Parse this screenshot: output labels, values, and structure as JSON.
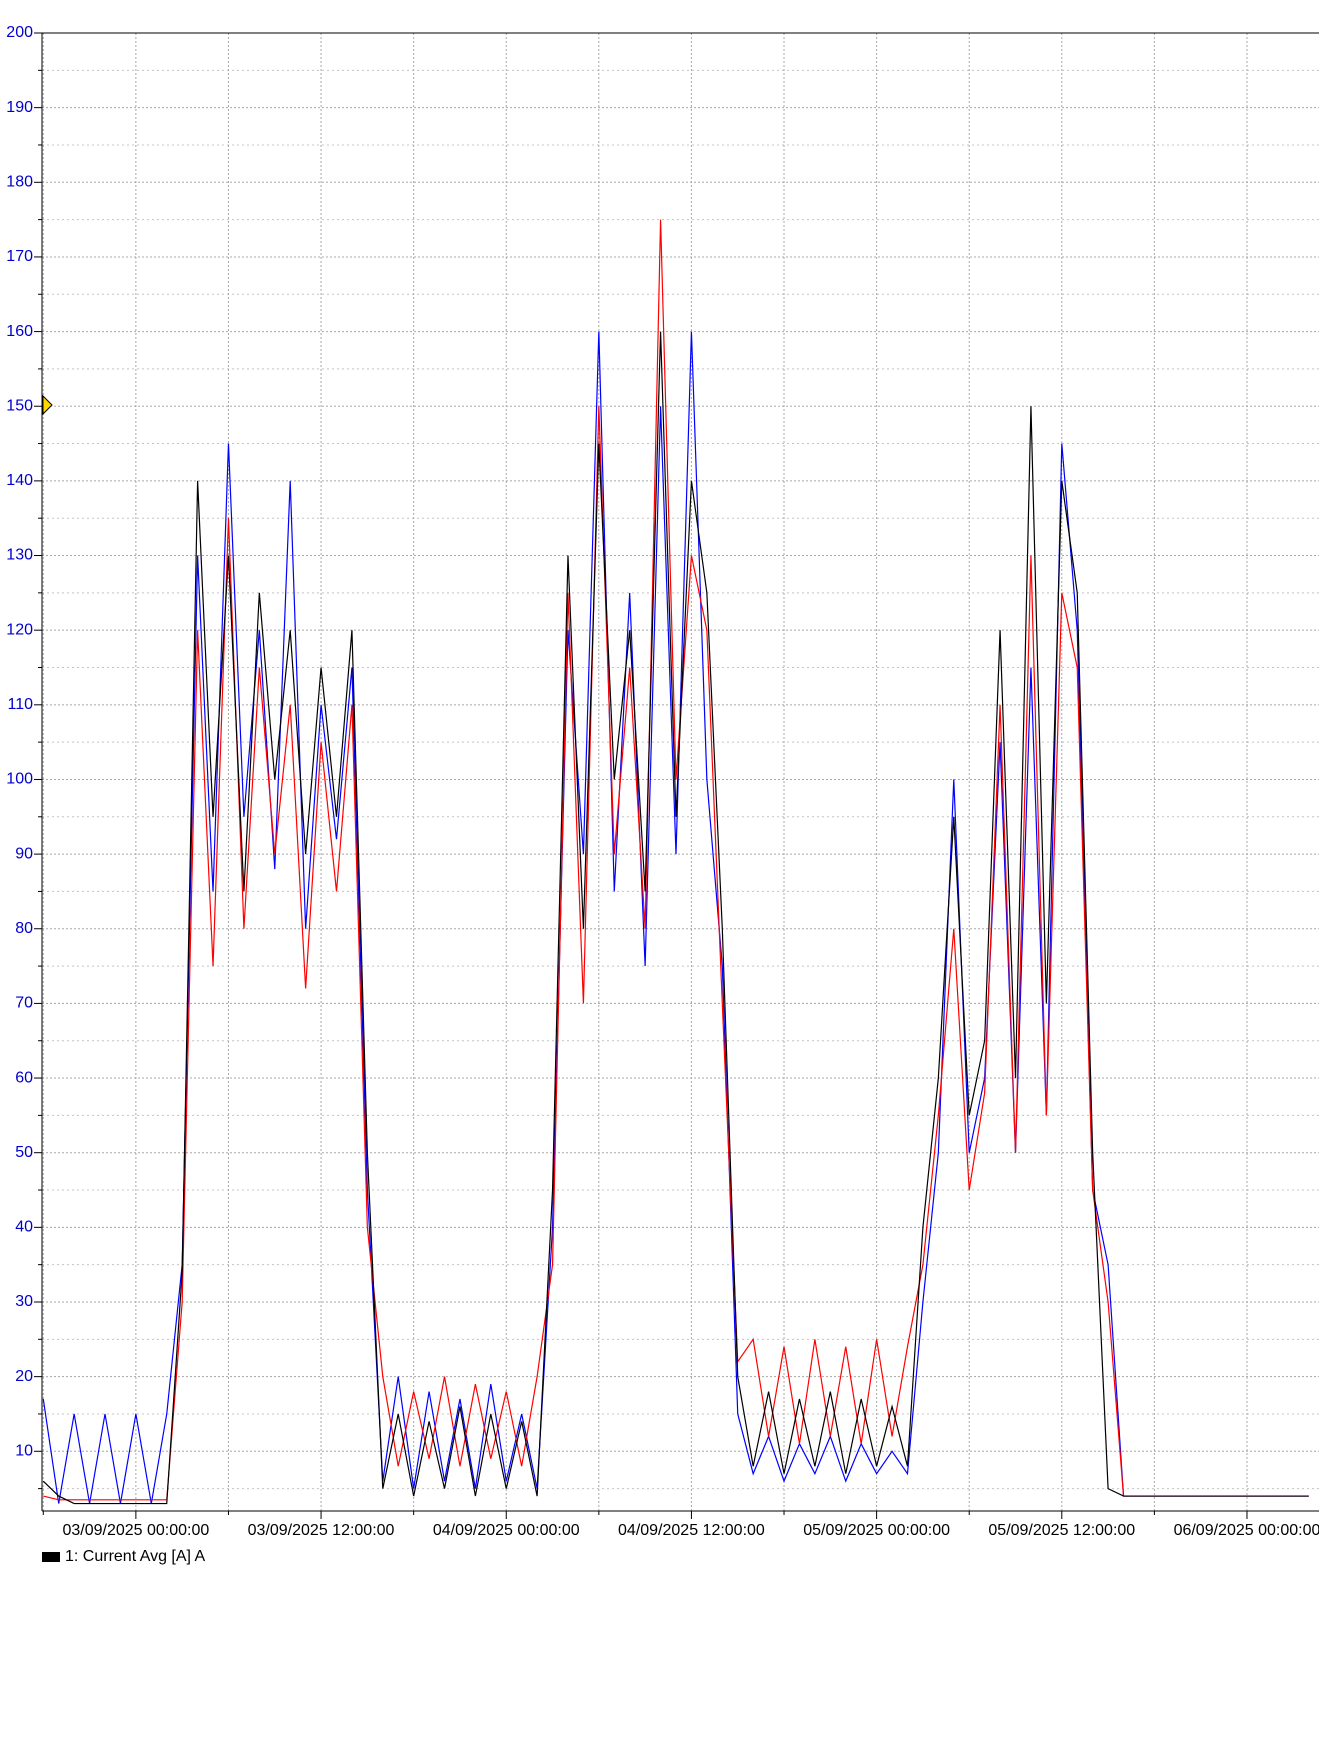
{
  "chart_data": {
    "type": "line",
    "x": [
      "02/09/2025 18:00:00",
      "02/09/2025 19:00:00",
      "02/09/2025 20:00:00",
      "02/09/2025 21:00:00",
      "02/09/2025 22:00:00",
      "02/09/2025 23:00:00",
      "03/09/2025 00:00:00",
      "03/09/2025 01:00:00",
      "03/09/2025 02:00:00",
      "03/09/2025 03:00:00",
      "03/09/2025 04:00:00",
      "03/09/2025 05:00:00",
      "03/09/2025 06:00:00",
      "03/09/2025 07:00:00",
      "03/09/2025 08:00:00",
      "03/09/2025 09:00:00",
      "03/09/2025 10:00:00",
      "03/09/2025 11:00:00",
      "03/09/2025 12:00:00",
      "03/09/2025 13:00:00",
      "03/09/2025 14:00:00",
      "03/09/2025 15:00:00",
      "03/09/2025 16:00:00",
      "03/09/2025 17:00:00",
      "03/09/2025 18:00:00",
      "03/09/2025 19:00:00",
      "03/09/2025 20:00:00",
      "03/09/2025 21:00:00",
      "03/09/2025 22:00:00",
      "03/09/2025 23:00:00",
      "04/09/2025 00:00:00",
      "04/09/2025 01:00:00",
      "04/09/2025 02:00:00",
      "04/09/2025 03:00:00",
      "04/09/2025 04:00:00",
      "04/09/2025 05:00:00",
      "04/09/2025 06:00:00",
      "04/09/2025 07:00:00",
      "04/09/2025 08:00:00",
      "04/09/2025 09:00:00",
      "04/09/2025 10:00:00",
      "04/09/2025 11:00:00",
      "04/09/2025 12:00:00",
      "04/09/2025 13:00:00",
      "04/09/2025 14:00:00",
      "04/09/2025 15:00:00",
      "04/09/2025 16:00:00",
      "04/09/2025 17:00:00",
      "04/09/2025 18:00:00",
      "04/09/2025 19:00:00",
      "04/09/2025 20:00:00",
      "04/09/2025 21:00:00",
      "04/09/2025 22:00:00",
      "04/09/2025 23:00:00",
      "05/09/2025 00:00:00",
      "05/09/2025 01:00:00",
      "05/09/2025 02:00:00",
      "05/09/2025 03:00:00",
      "05/09/2025 04:00:00",
      "05/09/2025 05:00:00",
      "05/09/2025 06:00:00",
      "05/09/2025 07:00:00",
      "05/09/2025 08:00:00",
      "05/09/2025 09:00:00",
      "05/09/2025 10:00:00",
      "05/09/2025 11:00:00",
      "05/09/2025 12:00:00",
      "05/09/2025 13:00:00",
      "05/09/2025 14:00:00",
      "05/09/2025 15:00:00",
      "05/09/2025 16:00:00",
      "05/09/2025 17:00:00",
      "05/09/2025 18:00:00",
      "05/09/2025 19:00:00",
      "05/09/2025 20:00:00",
      "05/09/2025 21:00:00",
      "05/09/2025 22:00:00",
      "05/09/2025 23:00:00",
      "06/09/2025 00:00:00",
      "06/09/2025 01:00:00",
      "06/09/2025 02:00:00",
      "06/09/2025 03:00:00",
      "06/09/2025 04:00:00"
    ],
    "series": [
      {
        "color": "#0000ff",
        "values": [
          17,
          3,
          15,
          3,
          15,
          3,
          15,
          3,
          15,
          35,
          130,
          85,
          145,
          95,
          120,
          88,
          140,
          80,
          110,
          92,
          115,
          45,
          6,
          20,
          5,
          18,
          6,
          17,
          5,
          19,
          6,
          15,
          5,
          40,
          120,
          90,
          160,
          85,
          125,
          75,
          150,
          90,
          160,
          100,
          75,
          15,
          7,
          12,
          6,
          11,
          7,
          12,
          6,
          11,
          7,
          10,
          7,
          30,
          50,
          100,
          50,
          60,
          105,
          50,
          115,
          55,
          145,
          120,
          45,
          35,
          4,
          4,
          4,
          4,
          4,
          4,
          4,
          4,
          4,
          4,
          4,
          4,
          4
        ]
      },
      {
        "color": "#ff0000",
        "values": [
          4,
          3.5,
          3.5,
          3.5,
          3.5,
          3.5,
          3.5,
          3.5,
          3.5,
          30,
          120,
          75,
          135,
          80,
          115,
          90,
          110,
          72,
          105,
          85,
          110,
          40,
          20,
          8,
          18,
          9,
          20,
          8,
          19,
          9,
          18,
          8,
          20,
          35,
          125,
          70,
          150,
          90,
          115,
          80,
          175,
          100,
          130,
          120,
          70,
          22,
          25,
          12,
          24,
          11,
          25,
          12,
          24,
          11,
          25,
          12,
          24,
          35,
          55,
          80,
          45,
          58,
          110,
          50,
          130,
          55,
          125,
          115,
          45,
          30,
          4,
          4,
          4,
          4,
          4,
          4,
          4,
          4,
          4,
          4,
          4,
          4,
          4
        ]
      },
      {
        "name": "1: Current Avg [A] A",
        "color": "#000000",
        "values": [
          6,
          4,
          3,
          3,
          3,
          3,
          3,
          3,
          3,
          34,
          140,
          95,
          130,
          85,
          125,
          100,
          120,
          90,
          115,
          95,
          120,
          50,
          5,
          15,
          4,
          14,
          5,
          16,
          4,
          15,
          5,
          14,
          4,
          45,
          130,
          80,
          145,
          100,
          120,
          85,
          160,
          95,
          140,
          125,
          80,
          20,
          8,
          18,
          7,
          17,
          8,
          18,
          7,
          17,
          8,
          16,
          8,
          40,
          60,
          95,
          55,
          65,
          120,
          60,
          150,
          70,
          140,
          125,
          50,
          5,
          4,
          4,
          4,
          4,
          4,
          4,
          4,
          4,
          4,
          4,
          4,
          4,
          4
        ]
      }
    ],
    "xlim": [
      "02/09/2025 17:55:00",
      "06/09/2025 04:40:00"
    ],
    "xticks": [
      "03/09/2025 00:00:00",
      "03/09/2025 12:00:00",
      "04/09/2025 00:00:00",
      "04/09/2025 12:00:00",
      "05/09/2025 00:00:00",
      "05/09/2025 12:00:00",
      "06/09/2025 00:00:00"
    ],
    "xminorticks": [
      "02/09/2025 18:00:00",
      "03/09/2025 06:00:00",
      "03/09/2025 18:00:00",
      "04/09/2025 06:00:00",
      "04/09/2025 18:00:00",
      "05/09/2025 06:00:00",
      "05/09/2025 18:00:00"
    ],
    "ylim": [
      2,
      200
    ],
    "yticks": [
      10,
      20,
      30,
      40,
      50,
      60,
      70,
      80,
      90,
      100,
      110,
      120,
      130,
      140,
      150,
      160,
      170,
      180,
      190,
      200
    ],
    "yminorticks": [
      5,
      15,
      25,
      35,
      45,
      55,
      65,
      75,
      85,
      95,
      105,
      115,
      125,
      135,
      145,
      155,
      165,
      175,
      185,
      195
    ],
    "grid": true
  }
}
